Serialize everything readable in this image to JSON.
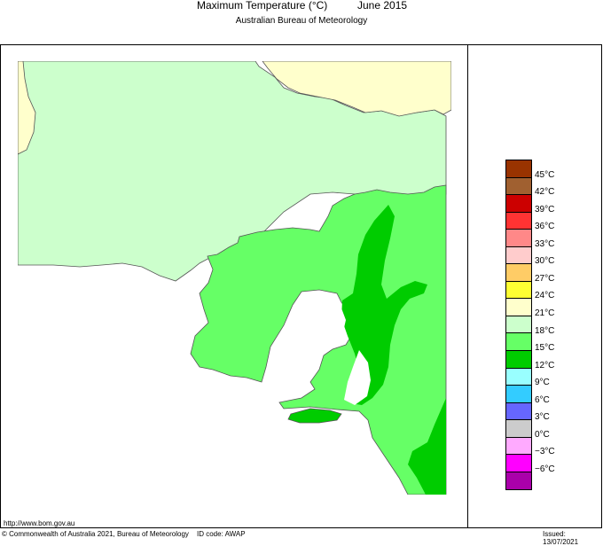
{
  "header": {
    "title": "Maximum Temperature (°C)",
    "period": "June 2015",
    "subtitle": "Australian Bureau of Meteorology"
  },
  "legend": {
    "colors": [
      "#993300",
      "#a06030",
      "#cc0000",
      "#ff3333",
      "#ff8888",
      "#ffcccc",
      "#ffcc66",
      "#ffff33",
      "#ffffcc",
      "#ccffcc",
      "#66ff66",
      "#00cc00",
      "#99ffff",
      "#33ccff",
      "#6666ff",
      "#cccccc",
      "#ffaaff",
      "#ff00ff",
      "#aa00aa"
    ],
    "labels": [
      "45°C",
      "42°C",
      "39°C",
      "36°C",
      "33°C",
      "30°C",
      "27°C",
      "24°C",
      "21°C",
      "18°C",
      "15°C",
      "12°C",
      "9°C",
      "6°C",
      "3°C",
      "0°C",
      "−3°C",
      "−6°C"
    ]
  },
  "map": {
    "fill_north": "#ffffcc",
    "fill_mid": "#ccffcc",
    "fill_south": "#66ff66",
    "fill_cool": "#00cc00",
    "water": "#ffffff"
  },
  "footer": {
    "url": "http://www.bom.gov.au",
    "copyright": "© Commonwealth of Australia 2021, Bureau of Meteorology",
    "id_code": "ID code: AWAP",
    "issued": "Issued: 13/07/2021"
  }
}
